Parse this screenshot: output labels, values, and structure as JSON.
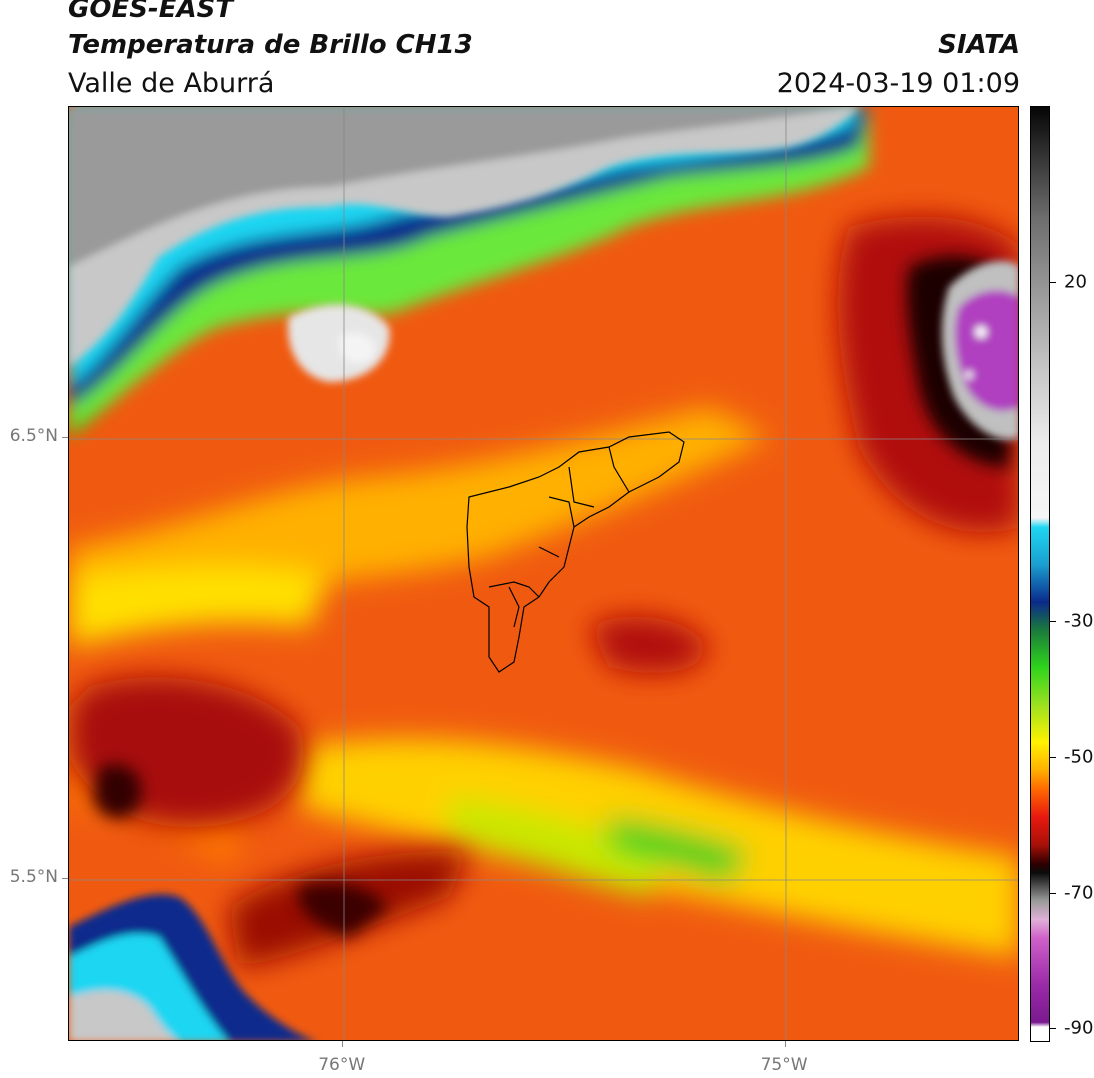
{
  "header": {
    "satellite": "GOES-EAST",
    "product": "Temperatura de Brillo CH13",
    "region": "Valle de Aburrá",
    "org": "SIATA",
    "timestamp": "2024-03-19 01:09"
  },
  "map": {
    "lat_labels": [
      {
        "label": "6.5°N",
        "value": 6.5
      },
      {
        "label": "5.5°N",
        "value": 5.5
      }
    ],
    "lon_labels": [
      {
        "label": "76°W",
        "value": -76
      },
      {
        "label": "75°W",
        "value": -75
      }
    ],
    "lon_range": [
      -76.62,
      -74.47
    ],
    "lat_range": [
      5.13,
      7.25
    ],
    "gridlines": true,
    "colors": {
      "warm_hot": "#8b0000",
      "red": "#e8190f",
      "orange": "#ff8c00",
      "yellow": "#fff200",
      "green": "#3ad11b",
      "dark_blue": "#0b2a8c",
      "cyan": "#1fd6f2",
      "gray": "#c8c8c8",
      "magenta": "#b040c0"
    }
  },
  "colorbar": {
    "ticks": [
      {
        "label": "20",
        "value": 20
      },
      {
        "label": "-30",
        "value": -30
      },
      {
        "label": "-50",
        "value": -50
      },
      {
        "label": "-70",
        "value": -70
      },
      {
        "label": "-90",
        "value": -90
      }
    ],
    "range": [
      -92,
      46
    ]
  }
}
